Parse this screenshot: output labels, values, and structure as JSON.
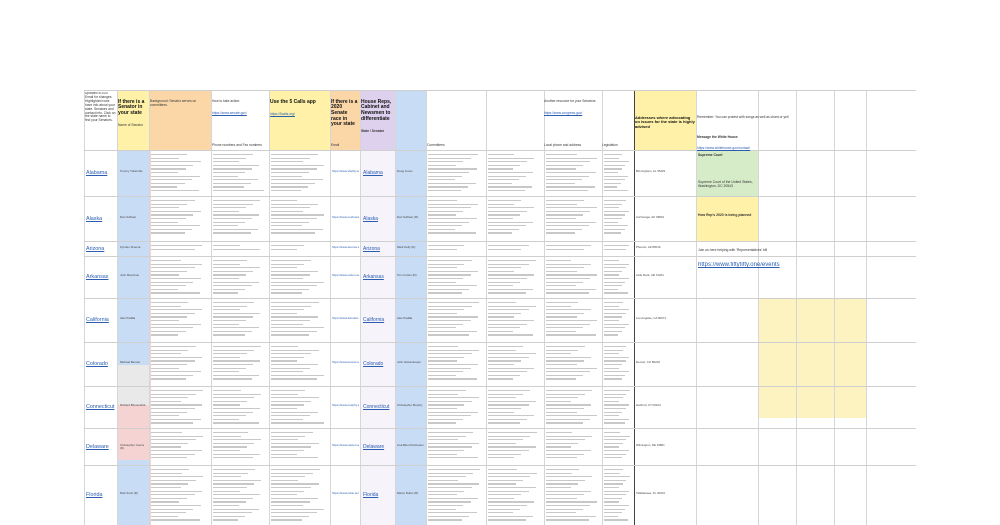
{
  "colors": {
    "yellow": "#fff2a8",
    "orange": "#fbd7a8",
    "blue": "#c9dcf5",
    "purple": "#ddd1ee",
    "green": "#d6ecc9",
    "lightyellow": "#fdf3c0",
    "pink": "#f6d3d3",
    "link": "#2a5db0"
  },
  "headers": {
    "intro": "Updated 9/1/20. Email for changes. Highlighted rows have info about your state. Senators and contact info. Click on the state name to find your Senators.",
    "senator_q": "If there is a Senator in your state",
    "senator_q2": "Name of Senator",
    "local": "Background: Senator serves on committees.",
    "local2": "How to take action:",
    "local_link": "https://www.senate.gov/",
    "phone_hdr": "Phone numbers and Fax numbers",
    "offices_hdr": "Use the 5 Calls app",
    "offices_link": "https://5calls.org/",
    "email_hdr": "Email",
    "third_q": "If there is a 2020 Senate race in your state",
    "house_q": "House Reps, Cabinet and Newsmen to differentiate",
    "state_rep": "State / Senator",
    "committees_hdr": "Committees",
    "contact_hdr": "Another resource for your Senators",
    "contact_link": "https://www.congress.gov/",
    "local_hdr": "Local phone and address",
    "leg_hdr": "Legislation",
    "right_note": "Addresses where advocating on issues for the state is highly advised",
    "far_right": "Remember: You can protest with songs as well as chant or yell",
    "far_right2": "Message the White House",
    "far_right_link": "https://www.whitehouse.gov/contact/"
  },
  "rows": [
    {
      "state": "Alabama",
      "rep": "Tommy Tuberville",
      "email": "https://www.shelby.senate.gov/",
      "state2": "Alabama",
      "rep2": "Doug Jones",
      "city": "Birmingham, AL 35203"
    },
    {
      "state": "Alaska",
      "rep": "Dan Sullivan",
      "email": "https://www.murkowski.senate.gov/",
      "state2": "Alaska",
      "rep2": "Dan Sullivan (R)",
      "city": "Anchorage, AK 99501"
    },
    {
      "state": "Arizona",
      "rep": "Kyrsten Sinema",
      "email": "https://www.sinema.senate.gov/",
      "state2": "Arizona",
      "rep2": "Mark Kelly (D)",
      "city": "Phoenix, AZ 85016"
    },
    {
      "state": "Arkansas",
      "rep": "John Boozman",
      "email": "https://www.cotton.senate.gov/",
      "state2": "Arkansas",
      "rep2": "Tom Cotton (R)",
      "city": "Little Rock, AR 72201"
    },
    {
      "state": "California",
      "rep": "Alex Padilla",
      "email": "https://www.feinstein.senate.gov/",
      "state2": "California",
      "rep2": "Alex Padilla",
      "city": "Los Angeles, CA 90071"
    },
    {
      "state": "Colorado",
      "rep": "Michael Bennet",
      "email": "https://www.bennet.senate.gov/",
      "state2": "Colorado",
      "rep2": "John Hickenlooper",
      "city": "Denver, CO 80202"
    },
    {
      "state": "Connecticut",
      "rep": "Richard Blumenthal",
      "email": "https://www.murphy.senate.gov/",
      "state2": "Connecticut",
      "rep2": "Christopher Murphy",
      "city": "Hartford, CT 06103"
    },
    {
      "state": "Delaware",
      "rep": "Christopher Coons (D)",
      "email": "https://www.carper.senate.gov/",
      "state2": "Delaware",
      "rep2": "Lisa Blunt Rochester",
      "city": "Wilmington, DE 19801"
    },
    {
      "state": "Florida",
      "rep": "Rick Scott (R)",
      "email": "https://www.rubio.senate.gov/",
      "state2": "Florida",
      "rep2": "Marco Rubio (R)",
      "city": "Tallahassee, FL 32301"
    }
  ],
  "right_notes": {
    "n1": "Supreme Court",
    "n2": "Supreme Court of the United States, Washington, DC 20543",
    "n3": "How Rep's 2020 is being planned",
    "n4": "https://www.fiftyfifty.one/events",
    "n5": "Join us here helping with 'Representatives' bill"
  }
}
